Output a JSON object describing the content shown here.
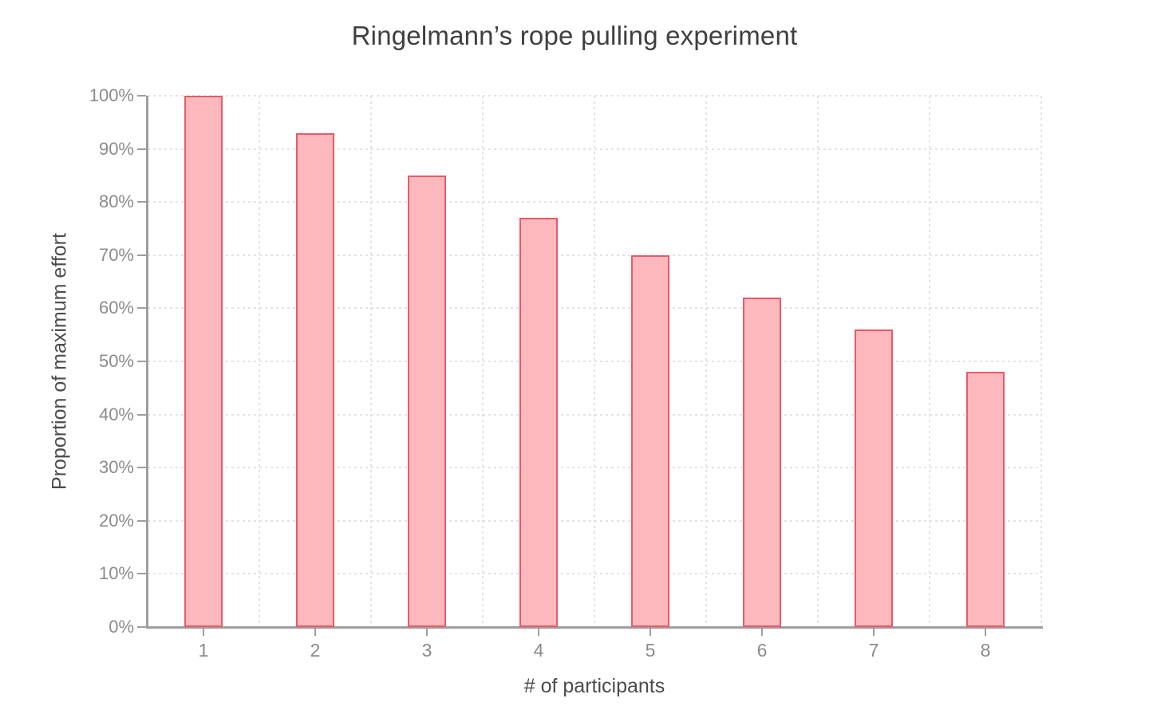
{
  "chart_data": {
    "type": "bar",
    "title": "Ringelmann’s rope pulling experiment",
    "xlabel": "# of participants",
    "ylabel": "Proportion of maximum effort",
    "categories": [
      "1",
      "2",
      "3",
      "4",
      "5",
      "6",
      "7",
      "8"
    ],
    "values": [
      100,
      93,
      85,
      77,
      70,
      62,
      56,
      48
    ],
    "value_unit": "percent",
    "ylim": [
      0,
      100
    ],
    "ytick_step": 10,
    "ytick_labels": [
      "0%",
      "10%",
      "20%",
      "30%",
      "40%",
      "50%",
      "60%",
      "70%",
      "80%",
      "90%",
      "100%"
    ],
    "grid": "dotted horizontal lines at each 10% and dotted vertical lines at category boundaries",
    "legend_position": "none",
    "colors": {
      "bar_fill": "#fcb8bd",
      "bar_border": "#e85a68",
      "gridline": "#e3e3e3",
      "axis_line": "#9e9e9e",
      "tick_label": "#8b8b8b",
      "axis_title": "#4c4c4c",
      "title": "#3f3f3f",
      "background": "#ffffff"
    }
  }
}
